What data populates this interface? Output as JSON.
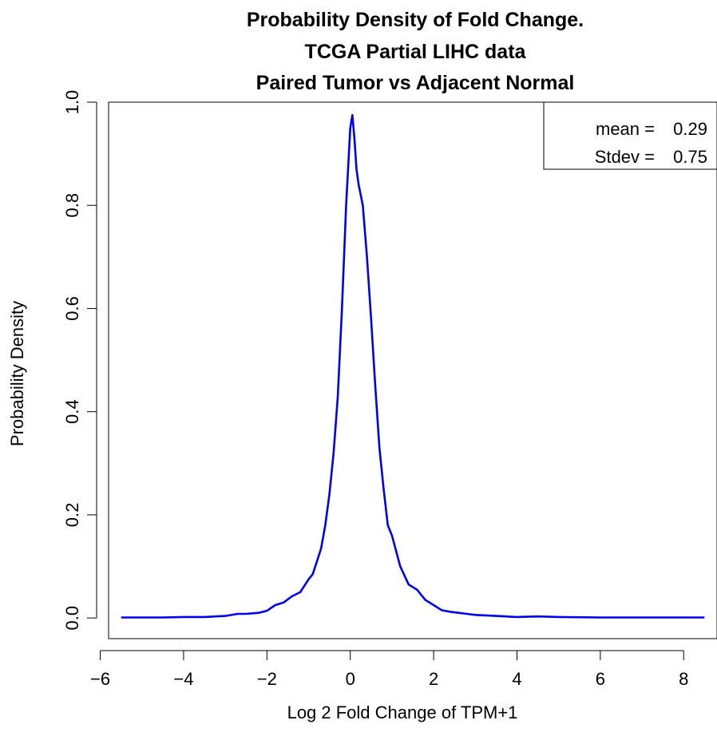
{
  "chart_data": {
    "type": "line",
    "title_lines": [
      "Probability Density of Fold Change.",
      "TCGA Partial LIHC data",
      "Paired Tumor vs Adjacent Normal"
    ],
    "xlabel": "Log 2 Fold Change of TPM+1",
    "ylabel": "Probability Density",
    "xlim": [
      -5.8,
      8.8
    ],
    "ylim": [
      -0.04,
      1.0
    ],
    "x_ticks": [
      -6,
      -4,
      -2,
      0,
      2,
      4,
      6,
      8
    ],
    "x_tick_labels": [
      "−6",
      "−4",
      "−2",
      "0",
      "2",
      "4",
      "6",
      "8"
    ],
    "y_ticks": [
      0.0,
      0.2,
      0.4,
      0.6,
      0.8,
      1.0
    ],
    "y_tick_labels": [
      "0.0",
      "0.2",
      "0.4",
      "0.6",
      "0.8",
      "1.0"
    ],
    "grid": false,
    "legend": {
      "placement": "top-right",
      "lines": [
        {
          "label": "mean = ",
          "value": "0.29"
        },
        {
          "label": "Stdev = ",
          "value": "0.75"
        }
      ]
    },
    "series": [
      {
        "color": "#0000ee",
        "x": [
          -5.5,
          -5.0,
          -4.5,
          -4.0,
          -3.5,
          -3.0,
          -2.7,
          -2.5,
          -2.2,
          -2.0,
          -1.8,
          -1.6,
          -1.4,
          -1.2,
          -1.0,
          -0.9,
          -0.8,
          -0.7,
          -0.6,
          -0.5,
          -0.4,
          -0.3,
          -0.2,
          -0.1,
          0.0,
          0.05,
          0.1,
          0.15,
          0.2,
          0.3,
          0.4,
          0.5,
          0.6,
          0.7,
          0.8,
          0.9,
          1.0,
          1.1,
          1.2,
          1.4,
          1.6,
          1.8,
          2.0,
          2.2,
          2.4,
          2.6,
          2.8,
          3.0,
          3.5,
          4.0,
          4.5,
          5.0,
          6.0,
          7.0,
          8.0,
          8.5
        ],
        "y": [
          0.001,
          0.001,
          0.001,
          0.002,
          0.002,
          0.004,
          0.008,
          0.008,
          0.01,
          0.014,
          0.025,
          0.03,
          0.042,
          0.05,
          0.075,
          0.085,
          0.11,
          0.135,
          0.18,
          0.24,
          0.32,
          0.43,
          0.6,
          0.8,
          0.95,
          0.975,
          0.93,
          0.87,
          0.84,
          0.8,
          0.7,
          0.58,
          0.45,
          0.33,
          0.25,
          0.18,
          0.16,
          0.13,
          0.1,
          0.065,
          0.055,
          0.035,
          0.025,
          0.015,
          0.012,
          0.01,
          0.008,
          0.006,
          0.004,
          0.002,
          0.003,
          0.002,
          0.001,
          0.001,
          0.001,
          0.001
        ]
      }
    ]
  }
}
